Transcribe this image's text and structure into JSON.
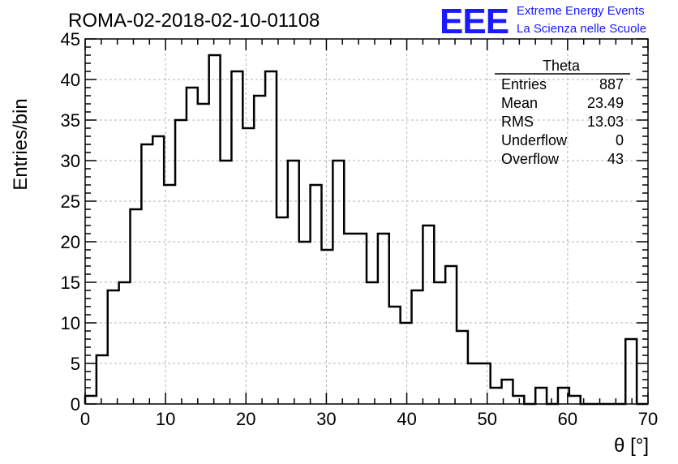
{
  "header": {
    "run_title": "ROMA-02-2018-02-10-01108",
    "logo_letters": "EEE",
    "logo_line1": "Extreme Energy Events",
    "logo_line2": "La Scienza nelle Scuole",
    "logo_color": "#1a1aff"
  },
  "stats_box": {
    "name": "Theta",
    "rows": [
      {
        "label": "Entries",
        "value": "887"
      },
      {
        "label": "Mean",
        "value": "23.49"
      },
      {
        "label": "RMS",
        "value": "13.03"
      },
      {
        "label": "Underflow",
        "value": "0"
      },
      {
        "label": "Overflow",
        "value": "43"
      }
    ]
  },
  "chart_data": {
    "type": "bar",
    "histogram": true,
    "xlabel": "θ [°]",
    "ylabel": "Entries/bin",
    "xlim": [
      0,
      70
    ],
    "ylim": [
      0,
      45
    ],
    "bin_width": 1.4,
    "x_ticks": [
      0,
      10,
      20,
      30,
      40,
      50,
      60,
      70
    ],
    "y_ticks": [
      0,
      5,
      10,
      15,
      20,
      25,
      30,
      35,
      40,
      45
    ],
    "grid": true,
    "bin_edges": [
      0,
      1.4,
      2.8,
      4.2,
      5.6,
      7.0,
      8.4,
      9.8,
      11.2,
      12.6,
      14.0,
      15.4,
      16.8,
      18.2,
      19.6,
      21.0,
      22.4,
      23.8,
      25.2,
      26.6,
      28.0,
      29.4,
      30.8,
      32.2,
      33.6,
      35.0,
      36.4,
      37.8,
      39.2,
      40.6,
      42.0,
      43.4,
      44.8,
      46.2,
      47.6,
      49.0,
      50.4,
      51.8,
      53.2,
      54.6,
      56.0,
      57.4,
      58.8,
      60.2,
      61.6,
      63.0,
      64.4,
      65.8,
      67.2,
      68.6,
      70.0
    ],
    "values": [
      1,
      6,
      14,
      15,
      24,
      32,
      33,
      27,
      35,
      39,
      37,
      43,
      30,
      41,
      34,
      38,
      41,
      23,
      30,
      20,
      27,
      19,
      30,
      21,
      21,
      15,
      21,
      12,
      10,
      14,
      22,
      15,
      17,
      9,
      5,
      5,
      2,
      3,
      1,
      0,
      2,
      0,
      2,
      1,
      0,
      0,
      0,
      0,
      8,
      0
    ]
  }
}
